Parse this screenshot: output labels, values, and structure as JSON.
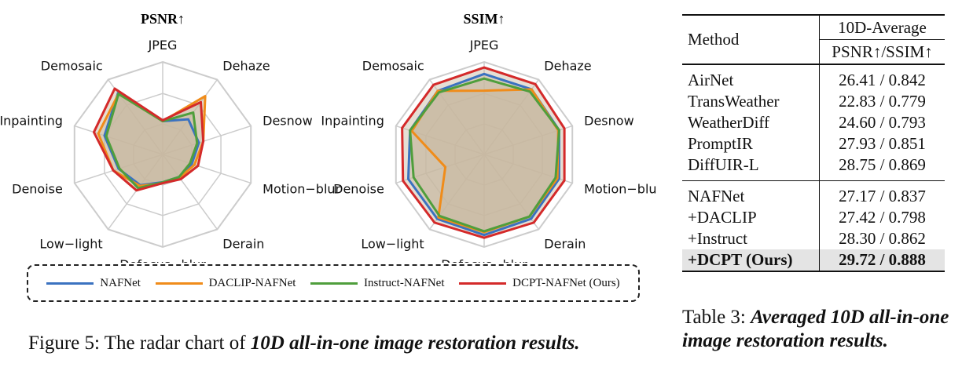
{
  "figure": {
    "caption_prefix": "Figure 5: The radar chart of ",
    "caption_emph": "10D all-in-one image restoration results."
  },
  "table": {
    "header": {
      "method": "Method",
      "group": "10D-Average",
      "sub": "PSNR↑/SSIM↑"
    },
    "rows_a": [
      {
        "method": "AirNet",
        "value": "26.41 / 0.842"
      },
      {
        "method": "TransWeather",
        "value": "22.83 / 0.779"
      },
      {
        "method": "WeatherDiff",
        "value": "24.60 / 0.793"
      },
      {
        "method": "PromptIR",
        "value": "27.93 / 0.851"
      },
      {
        "method": "DiffUIR-L",
        "value": "28.75 / 0.869"
      }
    ],
    "rows_b": [
      {
        "method": "NAFNet",
        "value": "27.17 / 0.837"
      },
      {
        "method": "+DACLIP",
        "value": "27.42 / 0.798"
      },
      {
        "method": "+Instruct",
        "value": "28.30 / 0.862"
      },
      {
        "method": "+DCPT (Ours)",
        "value": "29.72 / 0.888"
      }
    ],
    "caption_prefix": "Table 3: ",
    "caption_emph": "Averaged 10D all-in-one image restoration results."
  },
  "colors": {
    "NAFNet": "#3b72c0",
    "DACLIP-NAFNet": "#f08c1a",
    "Instruct-NAFNet": "#4f9e3c",
    "DCPT-NAFNet (Ours)": "#d42a2a",
    "fill": "#c8b8a0",
    "grid": "#cccccc"
  },
  "chart_data": [
    {
      "type": "radar",
      "title": "PSNR↑",
      "categories": [
        "JPEG",
        "Dehaze",
        "Desnow",
        "Motion−blur",
        "Derain",
        "Defocus−blur",
        "Low−light",
        "Denoise",
        "Inpainting",
        "Demosaic"
      ],
      "range": [
        0,
        1
      ],
      "series": [
        {
          "name": "NAFNet",
          "values": [
            0.36,
            0.47,
            0.41,
            0.33,
            0.3,
            0.3,
            0.41,
            0.5,
            0.66,
            0.82
          ]
        },
        {
          "name": "DACLIP-NAFNet",
          "values": [
            0.36,
            0.78,
            0.46,
            0.36,
            0.31,
            0.31,
            0.42,
            0.56,
            0.73,
            0.81
          ]
        },
        {
          "name": "Instruct-NAFNet",
          "values": [
            0.36,
            0.56,
            0.39,
            0.31,
            0.3,
            0.3,
            0.45,
            0.49,
            0.64,
            0.81
          ]
        },
        {
          "name": "DCPT-NAFNet (Ours)",
          "values": [
            0.37,
            0.7,
            0.46,
            0.4,
            0.33,
            0.31,
            0.48,
            0.56,
            0.78,
            0.88
          ]
        }
      ]
    },
    {
      "type": "radar",
      "title": "SSIM↑",
      "categories": [
        "JPEG",
        "Dehaze",
        "Desnow",
        "Motion−blur",
        "Derain",
        "Defocus−blur",
        "Low−light",
        "Denoise",
        "Inpainting",
        "Demosaic"
      ],
      "range": [
        0,
        1
      ],
      "series": [
        {
          "name": "NAFNet",
          "values": [
            0.87,
            0.87,
            0.85,
            0.85,
            0.86,
            0.87,
            0.86,
            0.86,
            0.84,
            0.85
          ]
        },
        {
          "name": "DACLIP-NAFNet",
          "values": [
            0.69,
            0.87,
            0.84,
            0.83,
            0.83,
            0.84,
            0.84,
            0.44,
            0.82,
            0.85
          ]
        },
        {
          "name": "Instruct-NAFNet",
          "values": [
            0.82,
            0.84,
            0.85,
            0.81,
            0.83,
            0.83,
            0.82,
            0.8,
            0.84,
            0.83
          ]
        },
        {
          "name": "DCPT-NAFNet (Ours)",
          "values": [
            0.94,
            0.94,
            0.91,
            0.91,
            0.91,
            0.9,
            0.91,
            0.92,
            0.93,
            0.93
          ]
        }
      ]
    }
  ]
}
